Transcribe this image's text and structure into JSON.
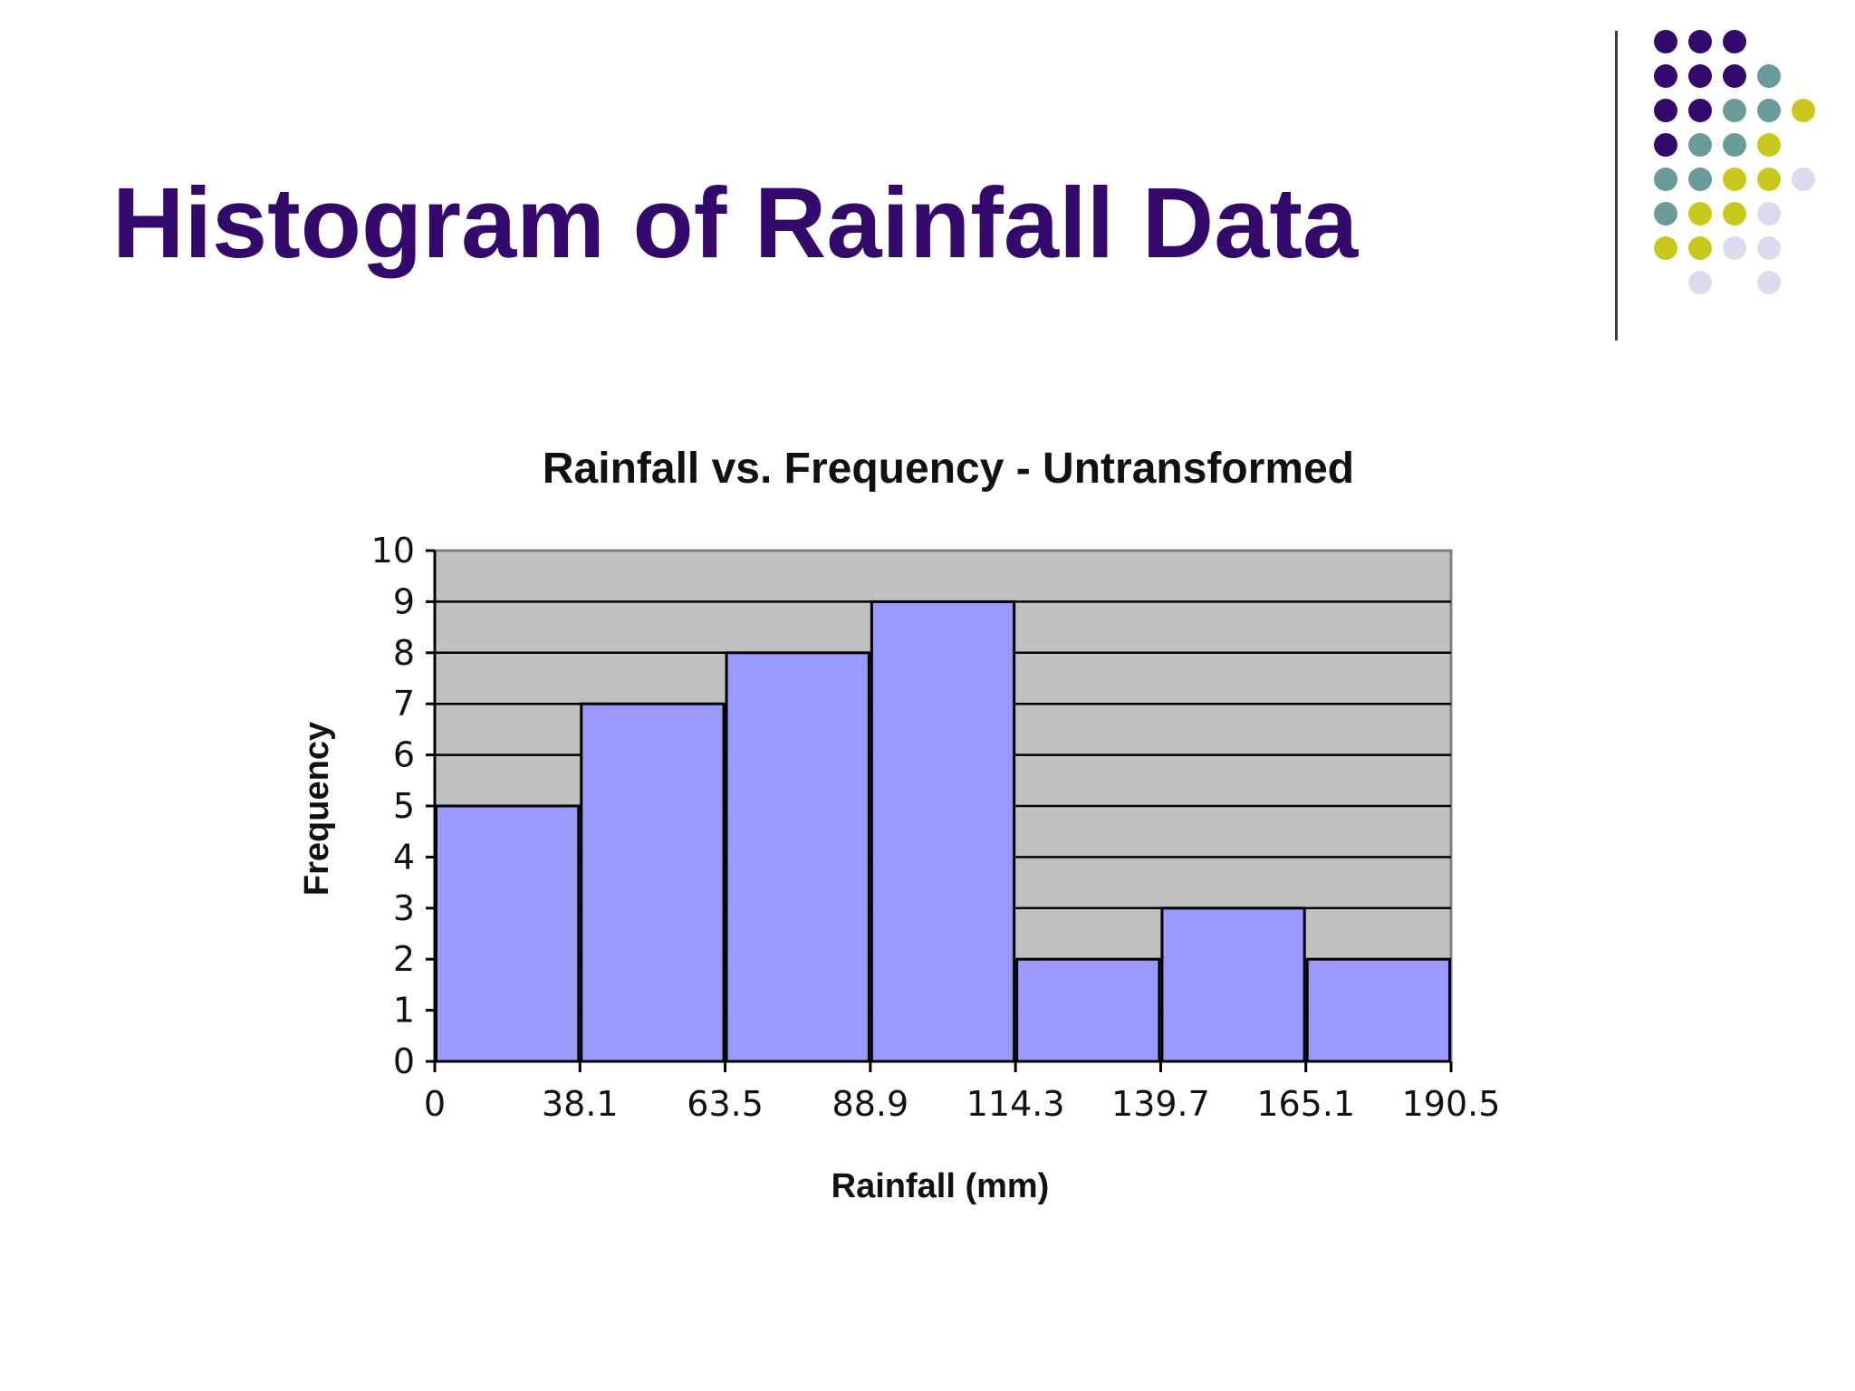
{
  "slide": {
    "title": "Histogram of Rainfall Data"
  },
  "colors": {
    "title": "#330a6b",
    "plot_background": "#c0c0c0",
    "bar_fill": "#9999ff",
    "bar_stroke": "#000000",
    "gridline": "#000000",
    "dot_purple": "#330a6b",
    "dot_teal": "#6a9a9a",
    "dot_olive": "#c8c81e",
    "dot_lavender": "#dcdaee"
  },
  "decoration": {
    "dot_rows": [
      [
        "purple",
        "purple",
        "purple"
      ],
      [
        "purple",
        "purple",
        "purple",
        "teal"
      ],
      [
        "purple",
        "purple",
        "teal",
        "teal",
        "olive"
      ],
      [
        "purple",
        "teal",
        "teal",
        "olive"
      ],
      [
        "teal",
        "teal",
        "olive",
        "olive",
        "lavender"
      ],
      [
        "teal",
        "olive",
        "olive",
        "lavender"
      ],
      [
        "olive",
        "olive",
        "lavender",
        "lavender"
      ],
      [
        "lavender",
        "lavender"
      ]
    ]
  },
  "chart_data": {
    "type": "bar",
    "title": "Rainfall vs. Frequency - Untransformed",
    "xlabel": "Rainfall (mm)",
    "ylabel": "Frequency",
    "x_edges": [
      "0",
      "38.1",
      "63.5",
      "88.9",
      "114.3",
      "139.7",
      "165.1",
      "190.5"
    ],
    "bins": [
      {
        "from": 0,
        "to": 38.1,
        "value": 5
      },
      {
        "from": 38.1,
        "to": 63.5,
        "value": 7
      },
      {
        "from": 63.5,
        "to": 88.9,
        "value": 8
      },
      {
        "from": 88.9,
        "to": 114.3,
        "value": 9
      },
      {
        "from": 114.3,
        "to": 139.7,
        "value": 2
      },
      {
        "from": 139.7,
        "to": 165.1,
        "value": 3
      },
      {
        "from": 165.1,
        "to": 190.5,
        "value": 2
      }
    ],
    "ylim": [
      0,
      10
    ],
    "yticks": [
      "0",
      "1",
      "2",
      "3",
      "4",
      "5",
      "6",
      "7",
      "8",
      "9",
      "10"
    ],
    "grid": "horizontal",
    "legend": "none"
  }
}
